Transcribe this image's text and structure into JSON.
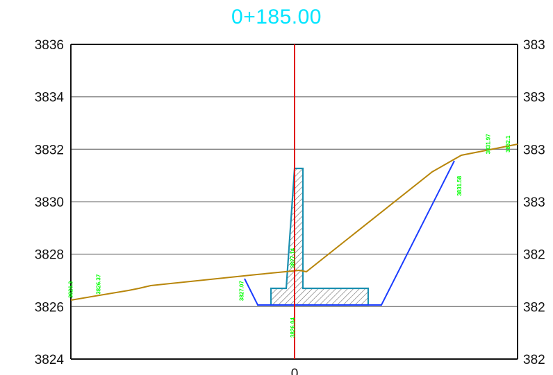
{
  "title": "0+185.00",
  "chart_data": {
    "type": "cross-section",
    "title": "0+185.00",
    "xlabel": "",
    "ylabel": "",
    "ylim": [
      3824,
      3836
    ],
    "y_ticks_left": [
      "3836",
      "3834",
      "3832",
      "3830",
      "3828",
      "3826",
      "3824"
    ],
    "y_ticks_right": [
      "383",
      "383",
      "383",
      "383",
      "382",
      "382",
      "382"
    ],
    "x_center_label": "0",
    "grid": true,
    "elevation_labels": [
      {
        "text": "3826.3",
        "station": -8.45,
        "elevation": 3826.65
      },
      {
        "text": "3826.37",
        "station": -7.4,
        "elevation": 3826.85
      },
      {
        "text": "3827.07",
        "station": -1.95,
        "elevation": 3826.6
      },
      {
        "text": "3827.14",
        "station": 0.0,
        "elevation": 3827.85
      },
      {
        "text": "3826.04",
        "station": 0.0,
        "elevation": 3825.2
      },
      {
        "text": "3831.58",
        "station": 6.35,
        "elevation": 3830.6
      },
      {
        "text": "3831.97",
        "station": 7.45,
        "elevation": 3832.2
      },
      {
        "text": "3832.1",
        "station": 8.2,
        "elevation": 3832.2
      }
    ],
    "colors": {
      "ground": "#b8860b",
      "design": "#1a3cff",
      "structure": "#1a8fb0",
      "centerline": "#e00000",
      "title": "#00e5ff",
      "labels": "#00ff00",
      "grid": "#808080"
    }
  }
}
